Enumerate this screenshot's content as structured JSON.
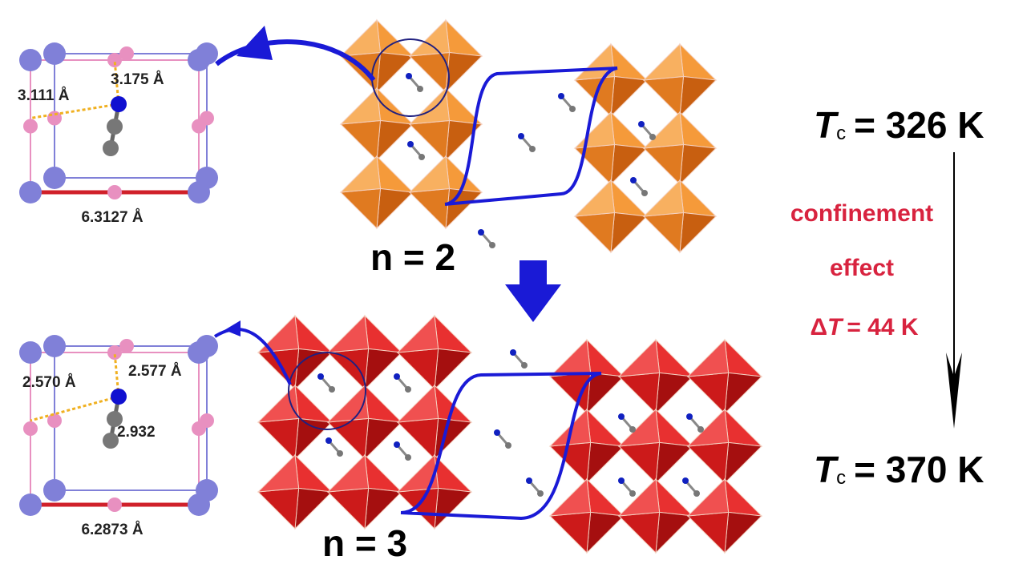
{
  "panels": [
    {
      "label": "n = 2",
      "cell_distances": [
        "3.111 Å",
        "3.175 Å"
      ],
      "cell_edge": "6.3127 Å"
    },
    {
      "label": "n = 3",
      "cell_distances": [
        "2.570 Å",
        "2.577 Å",
        "2.932"
      ],
      "cell_edge": "6.2873 Å"
    }
  ],
  "transition": {
    "top": {
      "symbol": "T",
      "subscript": "c",
      "text": "= 326 K"
    },
    "caption": [
      "confinement",
      "effect"
    ],
    "delta": {
      "prefix": "Δ",
      "symbol": "T",
      "text": "= 44 K"
    },
    "bottom": {
      "symbol": "T",
      "subscript": "c",
      "text": "= 370 K"
    }
  }
}
